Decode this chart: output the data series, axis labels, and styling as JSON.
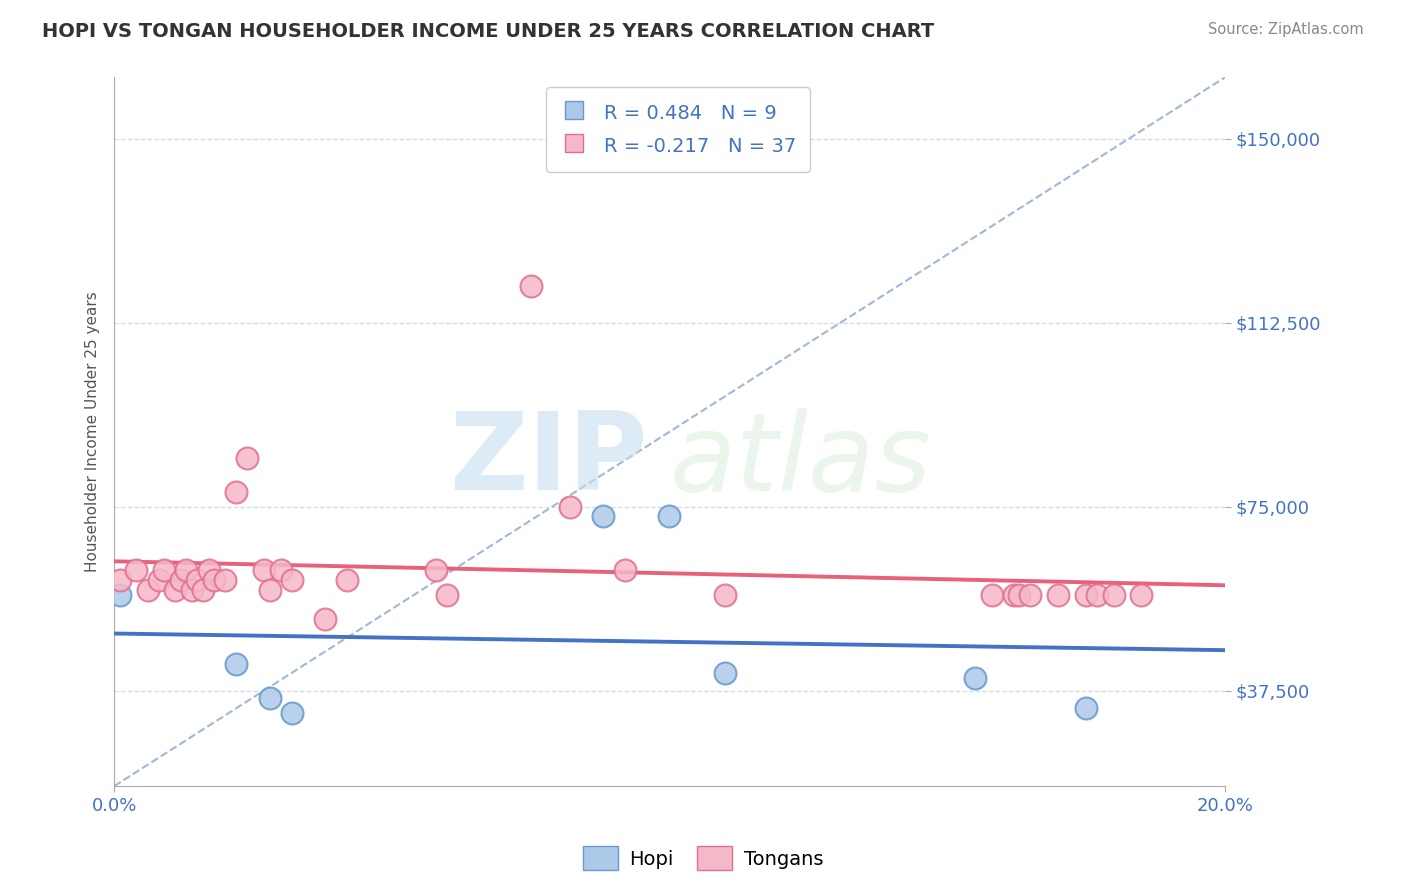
{
  "title": "HOPI VS TONGAN HOUSEHOLDER INCOME UNDER 25 YEARS CORRELATION CHART",
  "source": "Source: ZipAtlas.com",
  "ylabel": "Householder Income Under 25 years",
  "xlim": [
    0.0,
    0.2
  ],
  "ylim": [
    18000,
    162500
  ],
  "ytick_labels": [
    "$37,500",
    "$75,000",
    "$112,500",
    "$150,000"
  ],
  "ytick_values": [
    37500,
    75000,
    112500,
    150000
  ],
  "xtick_labels": [
    "0.0%",
    "20.0%"
  ],
  "watermark_zip": "ZIP",
  "watermark_atlas": "atlas",
  "hopi_color": "#adc9ea",
  "hopi_edge_color": "#6699cc",
  "tongan_color": "#f5b8c8",
  "tongan_edge_color": "#e07090",
  "hopi_R": 0.484,
  "hopi_N": 9,
  "tongan_R": -0.217,
  "tongan_N": 37,
  "hopi_line_color": "#4472c4",
  "tongan_line_color": "#e8607a",
  "diagonal_color": "#a0b8d8",
  "hopi_points_x": [
    0.001,
    0.022,
    0.028,
    0.032,
    0.088,
    0.1,
    0.11,
    0.155,
    0.175
  ],
  "hopi_points_y": [
    57000,
    43000,
    36000,
    33000,
    73000,
    73000,
    41000,
    40000,
    34000
  ],
  "tongan_points_x": [
    0.001,
    0.004,
    0.006,
    0.008,
    0.009,
    0.011,
    0.012,
    0.013,
    0.014,
    0.015,
    0.016,
    0.017,
    0.018,
    0.02,
    0.022,
    0.024,
    0.027,
    0.028,
    0.03,
    0.032,
    0.038,
    0.042,
    0.058,
    0.06,
    0.075,
    0.082,
    0.092,
    0.11,
    0.158,
    0.162,
    0.163,
    0.165,
    0.17,
    0.175,
    0.177,
    0.18,
    0.185
  ],
  "tongan_points_y": [
    60000,
    62000,
    58000,
    60000,
    62000,
    58000,
    60000,
    62000,
    58000,
    60000,
    58000,
    62000,
    60000,
    60000,
    78000,
    85000,
    62000,
    58000,
    62000,
    60000,
    52000,
    60000,
    62000,
    57000,
    120000,
    75000,
    62000,
    57000,
    57000,
    57000,
    57000,
    57000,
    57000,
    57000,
    57000,
    57000,
    57000
  ],
  "background_color": "#ffffff",
  "grid_color": "#d8d8d8"
}
